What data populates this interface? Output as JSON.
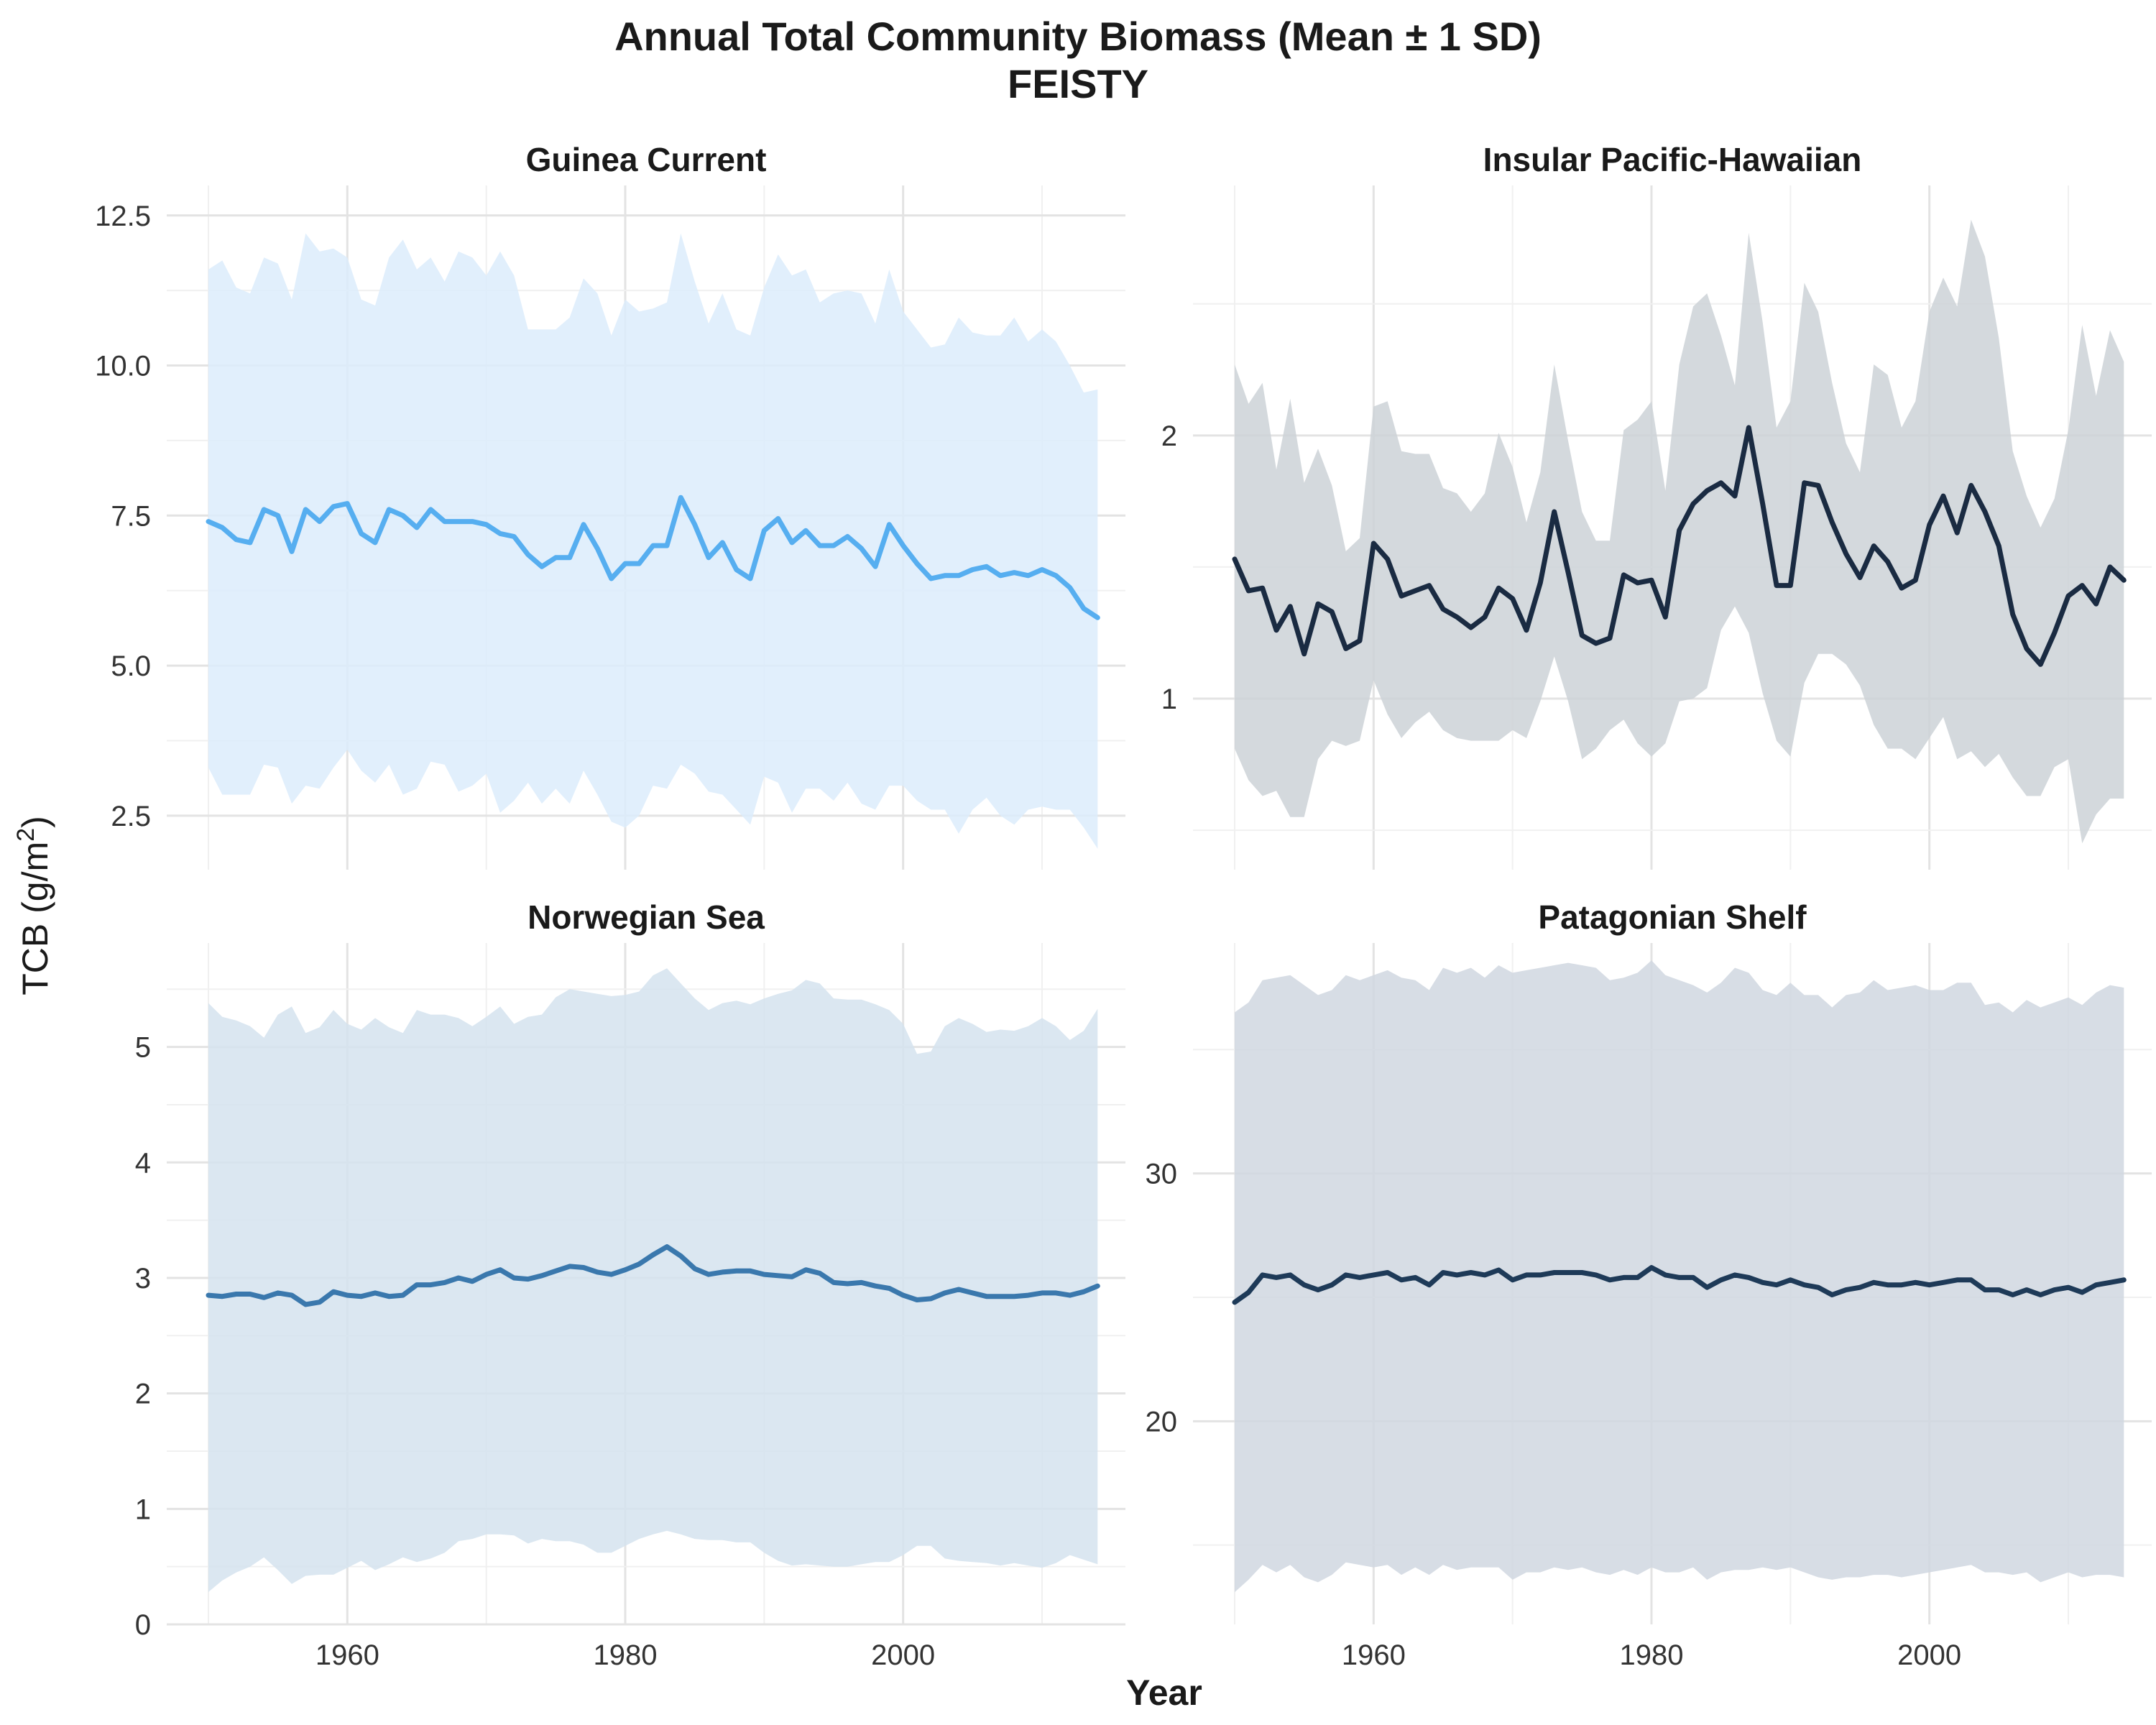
{
  "title": "Annual Total Community Biomass (Mean ± 1 SD)",
  "subtitle": "FEISTY",
  "xlabel": "Year",
  "ylabel_main": "TCB (g/m",
  "ylabel_sup": "2",
  "ylabel_end": ")",
  "chart_data": [
    {
      "type": "area",
      "title": "Guinea Current",
      "color": "#56aef0",
      "band_color": "#dcecfb",
      "xlim": [
        1947,
        2016
      ],
      "ylim": [
        1.6,
        13.0
      ],
      "x_ticks": [
        1960,
        1980,
        2000
      ],
      "y_ticks": [
        2.5,
        5.0,
        7.5,
        10.0,
        12.5
      ],
      "y_tick_labels": [
        "2.5",
        "5.0",
        "7.5",
        "10.0",
        "12.5"
      ],
      "x": [
        1950,
        1951,
        1952,
        1953,
        1954,
        1955,
        1956,
        1957,
        1958,
        1959,
        1960,
        1961,
        1962,
        1963,
        1964,
        1965,
        1966,
        1967,
        1968,
        1969,
        1970,
        1971,
        1972,
        1973,
        1974,
        1975,
        1976,
        1977,
        1978,
        1979,
        1980,
        1981,
        1982,
        1983,
        1984,
        1985,
        1986,
        1987,
        1988,
        1989,
        1990,
        1991,
        1992,
        1993,
        1994,
        1995,
        1996,
        1997,
        1998,
        1999,
        2000,
        2001,
        2002,
        2003,
        2004,
        2005,
        2006,
        2007,
        2008,
        2009,
        2010,
        2011,
        2012,
        2013,
        2014
      ],
      "mean": [
        7.4,
        7.3,
        7.1,
        7.05,
        7.6,
        7.5,
        6.9,
        7.6,
        7.4,
        7.65,
        7.7,
        7.2,
        7.05,
        7.6,
        7.5,
        7.3,
        7.6,
        7.4,
        7.4,
        7.4,
        7.35,
        7.2,
        7.15,
        6.85,
        6.65,
        6.8,
        6.8,
        7.35,
        6.95,
        6.45,
        6.7,
        6.7,
        7.0,
        7.0,
        7.8,
        7.35,
        6.8,
        7.05,
        6.6,
        6.45,
        7.25,
        7.45,
        7.05,
        7.25,
        7.0,
        7.0,
        7.15,
        6.95,
        6.65,
        7.35,
        7.0,
        6.7,
        6.45,
        6.5,
        6.5,
        6.6,
        6.65,
        6.5,
        6.55,
        6.5,
        6.6,
        6.5,
        6.3,
        5.95,
        5.8
      ],
      "upper": [
        11.6,
        11.75,
        11.3,
        11.2,
        11.8,
        11.7,
        11.1,
        12.2,
        11.9,
        11.95,
        11.8,
        11.1,
        11.0,
        11.8,
        12.1,
        11.6,
        11.8,
        11.4,
        11.9,
        11.8,
        11.5,
        11.9,
        11.5,
        10.6,
        10.6,
        10.6,
        10.8,
        11.45,
        11.2,
        10.5,
        11.1,
        10.9,
        10.95,
        11.05,
        12.2,
        11.4,
        10.7,
        11.2,
        10.6,
        10.5,
        11.3,
        11.85,
        11.5,
        11.6,
        11.05,
        11.2,
        11.25,
        11.2,
        10.7,
        11.6,
        10.9,
        10.6,
        10.3,
        10.35,
        10.8,
        10.55,
        10.5,
        10.5,
        10.8,
        10.4,
        10.6,
        10.4,
        10.0,
        9.55,
        9.6
      ],
      "lower": [
        3.3,
        2.85,
        2.85,
        2.85,
        3.35,
        3.3,
        2.7,
        3.0,
        2.95,
        3.3,
        3.6,
        3.25,
        3.05,
        3.35,
        2.85,
        2.95,
        3.4,
        3.35,
        2.9,
        3.0,
        3.2,
        2.55,
        2.75,
        3.05,
        2.7,
        2.95,
        2.7,
        3.25,
        2.85,
        2.4,
        2.3,
        2.5,
        3.0,
        2.95,
        3.35,
        3.2,
        2.9,
        2.85,
        2.6,
        2.35,
        3.15,
        3.05,
        2.55,
        2.95,
        2.95,
        2.75,
        3.05,
        2.7,
        2.6,
        3.0,
        3.0,
        2.75,
        2.6,
        2.6,
        2.2,
        2.6,
        2.8,
        2.5,
        2.35,
        2.6,
        2.65,
        2.6,
        2.6,
        2.3,
        1.95
      ]
    },
    {
      "type": "area",
      "title": "Insular Pacific-Hawaiian",
      "color": "#1a2b42",
      "band_color": "#cdd2d7",
      "xlim": [
        1947,
        2016
      ],
      "ylim": [
        0.35,
        2.95
      ],
      "x_ticks": [
        1960,
        1980,
        2000
      ],
      "y_ticks": [
        1,
        2
      ],
      "y_tick_labels": [
        "1",
        "2"
      ],
      "x": [
        1950,
        1951,
        1952,
        1953,
        1954,
        1955,
        1956,
        1957,
        1958,
        1959,
        1960,
        1961,
        1962,
        1963,
        1964,
        1965,
        1966,
        1967,
        1968,
        1969,
        1970,
        1971,
        1972,
        1973,
        1974,
        1975,
        1976,
        1977,
        1978,
        1979,
        1980,
        1981,
        1982,
        1983,
        1984,
        1985,
        1986,
        1987,
        1988,
        1989,
        1990,
        1991,
        1992,
        1993,
        1994,
        1995,
        1996,
        1997,
        1998,
        1999,
        2000,
        2001,
        2002,
        2003,
        2004,
        2005,
        2006,
        2007,
        2008,
        2009,
        2010,
        2011,
        2012,
        2013,
        2014
      ],
      "mean": [
        1.53,
        1.41,
        1.42,
        1.26,
        1.35,
        1.17,
        1.36,
        1.33,
        1.19,
        1.22,
        1.59,
        1.53,
        1.39,
        1.41,
        1.43,
        1.34,
        1.31,
        1.27,
        1.31,
        1.42,
        1.38,
        1.26,
        1.44,
        1.71,
        1.48,
        1.24,
        1.21,
        1.23,
        1.47,
        1.44,
        1.45,
        1.31,
        1.64,
        1.74,
        1.79,
        1.82,
        1.77,
        2.03,
        1.74,
        1.43,
        1.43,
        1.82,
        1.81,
        1.67,
        1.55,
        1.46,
        1.58,
        1.52,
        1.42,
        1.45,
        1.66,
        1.77,
        1.63,
        1.81,
        1.71,
        1.58,
        1.32,
        1.19,
        1.13,
        1.25,
        1.39,
        1.43,
        1.36,
        1.5,
        1.45
      ],
      "upper": [
        2.27,
        2.12,
        2.2,
        1.87,
        2.14,
        1.82,
        1.95,
        1.81,
        1.56,
        1.61,
        2.11,
        2.13,
        1.94,
        1.93,
        1.93,
        1.8,
        1.78,
        1.71,
        1.78,
        2.01,
        1.88,
        1.67,
        1.86,
        2.27,
        1.98,
        1.71,
        1.6,
        1.6,
        2.02,
        2.06,
        2.13,
        1.79,
        2.27,
        2.49,
        2.54,
        2.38,
        2.19,
        2.77,
        2.43,
        2.03,
        2.13,
        2.58,
        2.47,
        2.2,
        1.97,
        1.86,
        2.27,
        2.23,
        2.03,
        2.13,
        2.47,
        2.6,
        2.49,
        2.82,
        2.68,
        2.37,
        1.94,
        1.77,
        1.65,
        1.76,
        2.02,
        2.42,
        2.15,
        2.4,
        2.28
      ],
      "lower": [
        0.81,
        0.69,
        0.63,
        0.65,
        0.55,
        0.55,
        0.77,
        0.84,
        0.82,
        0.84,
        1.07,
        0.94,
        0.85,
        0.91,
        0.95,
        0.88,
        0.85,
        0.84,
        0.84,
        0.84,
        0.88,
        0.85,
        0.99,
        1.16,
        0.99,
        0.77,
        0.81,
        0.88,
        0.92,
        0.83,
        0.78,
        0.83,
        0.99,
        1.0,
        1.04,
        1.26,
        1.35,
        1.25,
        1.02,
        0.84,
        0.78,
        1.06,
        1.17,
        1.17,
        1.13,
        1.05,
        0.9,
        0.81,
        0.81,
        0.77,
        0.85,
        0.93,
        0.77,
        0.8,
        0.74,
        0.79,
        0.7,
        0.63,
        0.63,
        0.74,
        0.77,
        0.45,
        0.56,
        0.62,
        0.62
      ]
    },
    {
      "type": "area",
      "title": "Norwegian Sea",
      "color": "#3a78ad",
      "band_color": "#d5e3ee",
      "xlim": [
        1947,
        2016
      ],
      "ylim": [
        0,
        5.9
      ],
      "x_ticks": [
        1960,
        1980,
        2000
      ],
      "y_ticks": [
        0,
        1,
        2,
        3,
        4,
        5
      ],
      "y_tick_labels": [
        "0",
        "1",
        "2",
        "3",
        "4",
        "5"
      ],
      "x": [
        1950,
        1951,
        1952,
        1953,
        1954,
        1955,
        1956,
        1957,
        1958,
        1959,
        1960,
        1961,
        1962,
        1963,
        1964,
        1965,
        1966,
        1967,
        1968,
        1969,
        1970,
        1971,
        1972,
        1973,
        1974,
        1975,
        1976,
        1977,
        1978,
        1979,
        1980,
        1981,
        1982,
        1983,
        1984,
        1985,
        1986,
        1987,
        1988,
        1989,
        1990,
        1991,
        1992,
        1993,
        1994,
        1995,
        1996,
        1997,
        1998,
        1999,
        2000,
        2001,
        2002,
        2003,
        2004,
        2005,
        2006,
        2007,
        2008,
        2009,
        2010,
        2011,
        2012,
        2013,
        2014
      ],
      "mean": [
        2.85,
        2.84,
        2.86,
        2.86,
        2.83,
        2.87,
        2.85,
        2.77,
        2.79,
        2.88,
        2.85,
        2.84,
        2.87,
        2.84,
        2.85,
        2.94,
        2.94,
        2.96,
        3.0,
        2.97,
        3.03,
        3.07,
        3.0,
        2.99,
        3.02,
        3.06,
        3.1,
        3.09,
        3.05,
        3.03,
        3.07,
        3.12,
        3.2,
        3.27,
        3.19,
        3.08,
        3.03,
        3.05,
        3.06,
        3.06,
        3.03,
        3.02,
        3.01,
        3.07,
        3.04,
        2.96,
        2.95,
        2.96,
        2.93,
        2.91,
        2.85,
        2.81,
        2.82,
        2.87,
        2.9,
        2.87,
        2.84,
        2.84,
        2.84,
        2.85,
        2.87,
        2.87,
        2.85,
        2.88,
        2.93
      ],
      "upper": [
        5.38,
        5.26,
        5.23,
        5.18,
        5.08,
        5.28,
        5.35,
        5.12,
        5.17,
        5.32,
        5.2,
        5.15,
        5.25,
        5.17,
        5.12,
        5.32,
        5.28,
        5.28,
        5.25,
        5.18,
        5.26,
        5.35,
        5.2,
        5.26,
        5.28,
        5.43,
        5.5,
        5.48,
        5.46,
        5.44,
        5.45,
        5.48,
        5.62,
        5.68,
        5.55,
        5.42,
        5.32,
        5.38,
        5.4,
        5.37,
        5.42,
        5.46,
        5.49,
        5.58,
        5.55,
        5.42,
        5.41,
        5.41,
        5.37,
        5.32,
        5.2,
        4.94,
        4.96,
        5.18,
        5.25,
        5.2,
        5.13,
        5.15,
        5.14,
        5.18,
        5.25,
        5.18,
        5.06,
        5.14,
        5.33
      ],
      "lower": [
        0.28,
        0.38,
        0.45,
        0.5,
        0.58,
        0.47,
        0.35,
        0.42,
        0.43,
        0.43,
        0.49,
        0.55,
        0.47,
        0.52,
        0.58,
        0.54,
        0.57,
        0.62,
        0.72,
        0.74,
        0.78,
        0.78,
        0.77,
        0.7,
        0.74,
        0.72,
        0.72,
        0.69,
        0.62,
        0.62,
        0.68,
        0.74,
        0.78,
        0.81,
        0.78,
        0.74,
        0.73,
        0.73,
        0.71,
        0.71,
        0.62,
        0.55,
        0.51,
        0.52,
        0.51,
        0.5,
        0.5,
        0.52,
        0.54,
        0.54,
        0.6,
        0.68,
        0.68,
        0.57,
        0.55,
        0.54,
        0.53,
        0.51,
        0.53,
        0.51,
        0.49,
        0.53,
        0.6,
        0.56,
        0.52
      ]
    },
    {
      "type": "area",
      "title": "Patagonian Shelf",
      "color": "#1e3a58",
      "band_color": "#d0d7e1",
      "xlim": [
        1947,
        2016
      ],
      "ylim": [
        11.8,
        39.3
      ],
      "x_ticks": [
        1960,
        1980,
        2000
      ],
      "y_ticks": [
        20,
        30
      ],
      "y_tick_labels": [
        "20",
        "30"
      ],
      "x": [
        1950,
        1951,
        1952,
        1953,
        1954,
        1955,
        1956,
        1957,
        1958,
        1959,
        1960,
        1961,
        1962,
        1963,
        1964,
        1965,
        1966,
        1967,
        1968,
        1969,
        1970,
        1971,
        1972,
        1973,
        1974,
        1975,
        1976,
        1977,
        1978,
        1979,
        1980,
        1981,
        1982,
        1983,
        1984,
        1985,
        1986,
        1987,
        1988,
        1989,
        1990,
        1991,
        1992,
        1993,
        1994,
        1995,
        1996,
        1997,
        1998,
        1999,
        2000,
        2001,
        2002,
        2003,
        2004,
        2005,
        2006,
        2007,
        2008,
        2009,
        2010,
        2011,
        2012,
        2013,
        2014
      ],
      "mean": [
        24.8,
        25.2,
        25.9,
        25.8,
        25.9,
        25.5,
        25.3,
        25.5,
        25.9,
        25.8,
        25.9,
        26.0,
        25.7,
        25.8,
        25.5,
        26.0,
        25.9,
        26.0,
        25.9,
        26.1,
        25.7,
        25.9,
        25.9,
        26.0,
        26.0,
        26.0,
        25.9,
        25.7,
        25.8,
        25.8,
        26.2,
        25.9,
        25.8,
        25.8,
        25.4,
        25.7,
        25.9,
        25.8,
        25.6,
        25.5,
        25.7,
        25.5,
        25.4,
        25.1,
        25.3,
        25.4,
        25.6,
        25.5,
        25.5,
        25.6,
        25.5,
        25.6,
        25.7,
        25.7,
        25.3,
        25.3,
        25.1,
        25.3,
        25.1,
        25.3,
        25.4,
        25.2,
        25.5,
        25.6,
        25.7
      ],
      "upper": [
        36.5,
        36.9,
        37.8,
        37.9,
        38.0,
        37.6,
        37.2,
        37.4,
        38.0,
        37.8,
        38.0,
        38.2,
        37.9,
        37.8,
        37.4,
        38.3,
        38.1,
        38.3,
        37.9,
        38.4,
        38.1,
        38.2,
        38.3,
        38.4,
        38.5,
        38.4,
        38.3,
        37.8,
        37.9,
        38.1,
        38.6,
        38.0,
        37.8,
        37.6,
        37.3,
        37.7,
        38.3,
        38.1,
        37.4,
        37.2,
        37.7,
        37.2,
        37.2,
        36.7,
        37.2,
        37.3,
        37.8,
        37.4,
        37.5,
        37.6,
        37.4,
        37.4,
        37.7,
        37.7,
        36.8,
        36.9,
        36.5,
        37.0,
        36.7,
        36.9,
        37.1,
        36.8,
        37.3,
        37.6,
        37.5
      ],
      "lower": [
        13.1,
        13.6,
        14.2,
        13.9,
        14.2,
        13.7,
        13.5,
        13.8,
        14.3,
        14.2,
        14.1,
        14.2,
        13.8,
        14.1,
        13.8,
        14.2,
        14.0,
        14.1,
        14.1,
        14.1,
        13.6,
        13.9,
        13.9,
        14.1,
        14.0,
        14.1,
        13.9,
        13.8,
        14.0,
        13.8,
        14.1,
        13.9,
        13.9,
        14.1,
        13.6,
        13.9,
        14.0,
        14.0,
        14.1,
        14.0,
        14.1,
        13.9,
        13.7,
        13.6,
        13.7,
        13.7,
        13.8,
        13.8,
        13.7,
        13.8,
        13.9,
        14.0,
        14.1,
        14.2,
        13.9,
        13.9,
        13.8,
        13.9,
        13.5,
        13.7,
        13.9,
        13.7,
        13.8,
        13.8,
        13.7
      ]
    }
  ]
}
